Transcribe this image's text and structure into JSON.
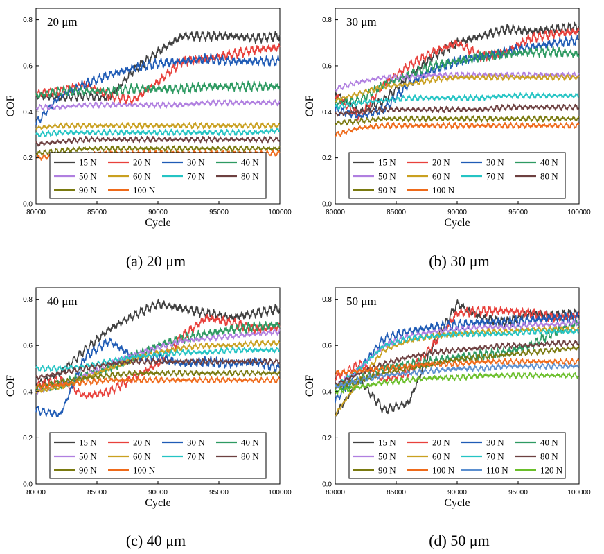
{
  "chart_data": [
    {
      "type": "line",
      "caption": "(a) 20 μm",
      "tag": "20 μm",
      "xlabel": "Cycle",
      "ylabel": "COF",
      "xlim": [
        80000,
        100000
      ],
      "ylim": [
        0,
        0.85
      ],
      "xticks": [
        "80000",
        "85000",
        "90000",
        "95000",
        "100000"
      ],
      "yticks": [
        "0.0",
        "0.2",
        "0.4",
        "0.6",
        "0.8"
      ],
      "legend": "bottom",
      "x": [
        80000,
        82000,
        84000,
        86000,
        88000,
        90000,
        92000,
        94000,
        96000,
        98000,
        100000
      ],
      "series": [
        {
          "name": "15 N",
          "color": "#404040",
          "values": [
            0.47,
            0.46,
            0.47,
            0.46,
            0.58,
            0.66,
            0.73,
            0.73,
            0.73,
            0.72,
            0.73
          ]
        },
        {
          "name": "20 N",
          "color": "#e8413c",
          "values": [
            0.48,
            0.49,
            0.52,
            0.47,
            0.45,
            0.53,
            0.62,
            0.63,
            0.65,
            0.67,
            0.68
          ]
        },
        {
          "name": "30 N",
          "color": "#1f5bb5",
          "values": [
            0.35,
            0.47,
            0.52,
            0.56,
            0.59,
            0.61,
            0.62,
            0.63,
            0.62,
            0.62,
            0.62
          ]
        },
        {
          "name": "40 N",
          "color": "#2e9a62",
          "values": [
            0.47,
            0.49,
            0.49,
            0.49,
            0.5,
            0.5,
            0.5,
            0.51,
            0.51,
            0.51,
            0.51
          ]
        },
        {
          "name": "50 N",
          "color": "#b07fe0",
          "values": [
            0.42,
            0.42,
            0.43,
            0.43,
            0.43,
            0.43,
            0.43,
            0.44,
            0.44,
            0.44,
            0.44
          ]
        },
        {
          "name": "60 N",
          "color": "#c9a020",
          "values": [
            0.33,
            0.34,
            0.34,
            0.34,
            0.34,
            0.34,
            0.34,
            0.34,
            0.34,
            0.34,
            0.34
          ]
        },
        {
          "name": "70 N",
          "color": "#24c4c4",
          "values": [
            0.3,
            0.31,
            0.31,
            0.31,
            0.31,
            0.31,
            0.31,
            0.31,
            0.31,
            0.31,
            0.32
          ]
        },
        {
          "name": "80 N",
          "color": "#6d4040",
          "values": [
            0.26,
            0.27,
            0.28,
            0.28,
            0.28,
            0.28,
            0.28,
            0.28,
            0.28,
            0.28,
            0.28
          ]
        },
        {
          "name": "90 N",
          "color": "#7a7a10",
          "values": [
            0.22,
            0.23,
            0.24,
            0.24,
            0.24,
            0.24,
            0.24,
            0.24,
            0.24,
            0.24,
            0.24
          ]
        },
        {
          "name": "100 N",
          "color": "#ef6a1a",
          "values": [
            0.2,
            0.21,
            0.21,
            0.22,
            0.22,
            0.22,
            0.22,
            0.22,
            0.22,
            0.22,
            0.22
          ]
        }
      ]
    },
    {
      "type": "line",
      "caption": "(b) 30 μm",
      "tag": "30 μm",
      "xlabel": "Cycle",
      "ylabel": "COF",
      "xlim": [
        80000,
        100000
      ],
      "ylim": [
        0,
        0.85
      ],
      "xticks": [
        "80000",
        "85000",
        "90000",
        "95000",
        "100000"
      ],
      "yticks": [
        "0.0",
        "0.2",
        "0.4",
        "0.6",
        "0.8"
      ],
      "legend": "bottom",
      "x": [
        80000,
        82000,
        84000,
        86000,
        88000,
        90000,
        92000,
        94000,
        96000,
        98000,
        100000
      ],
      "series": [
        {
          "name": "15 N",
          "color": "#404040",
          "values": [
            0.48,
            0.4,
            0.45,
            0.55,
            0.64,
            0.7,
            0.73,
            0.76,
            0.75,
            0.76,
            0.77
          ]
        },
        {
          "name": "20 N",
          "color": "#e8413c",
          "values": [
            0.47,
            0.38,
            0.52,
            0.6,
            0.66,
            0.7,
            0.64,
            0.66,
            0.72,
            0.74,
            0.75
          ]
        },
        {
          "name": "30 N",
          "color": "#1f5bb5",
          "values": [
            0.41,
            0.38,
            0.41,
            0.52,
            0.58,
            0.62,
            0.64,
            0.66,
            0.68,
            0.7,
            0.71
          ]
        },
        {
          "name": "40 N",
          "color": "#2e9a62",
          "values": [
            0.44,
            0.45,
            0.52,
            0.56,
            0.6,
            0.62,
            0.64,
            0.65,
            0.66,
            0.66,
            0.65
          ]
        },
        {
          "name": "50 N",
          "color": "#b07fe0",
          "values": [
            0.5,
            0.53,
            0.55,
            0.55,
            0.56,
            0.56,
            0.56,
            0.56,
            0.56,
            0.56,
            0.56
          ]
        },
        {
          "name": "60 N",
          "color": "#c9a020",
          "values": [
            0.45,
            0.48,
            0.51,
            0.52,
            0.54,
            0.55,
            0.55,
            0.55,
            0.55,
            0.55,
            0.55
          ]
        },
        {
          "name": "70 N",
          "color": "#24c4c4",
          "values": [
            0.42,
            0.44,
            0.45,
            0.46,
            0.46,
            0.46,
            0.46,
            0.47,
            0.47,
            0.47,
            0.47
          ]
        },
        {
          "name": "80 N",
          "color": "#6d4040",
          "values": [
            0.39,
            0.4,
            0.41,
            0.41,
            0.41,
            0.41,
            0.41,
            0.42,
            0.42,
            0.42,
            0.42
          ]
        },
        {
          "name": "90 N",
          "color": "#7a7a10",
          "values": [
            0.35,
            0.36,
            0.37,
            0.37,
            0.37,
            0.37,
            0.37,
            0.37,
            0.37,
            0.37,
            0.37
          ]
        },
        {
          "name": "100 N",
          "color": "#ef6a1a",
          "values": [
            0.3,
            0.33,
            0.34,
            0.34,
            0.34,
            0.34,
            0.34,
            0.34,
            0.34,
            0.34,
            0.34
          ]
        }
      ]
    },
    {
      "type": "line",
      "caption": "(c) 40 μm",
      "tag": "40 μm",
      "xlabel": "Cycle",
      "ylabel": "COF",
      "xlim": [
        80000,
        100000
      ],
      "ylim": [
        0,
        0.85
      ],
      "xticks": [
        "80000",
        "85000",
        "90000",
        "95000",
        "100000"
      ],
      "yticks": [
        "0.0",
        "0.2",
        "0.4",
        "0.6",
        "0.8"
      ],
      "legend": "bottom",
      "x": [
        80000,
        82000,
        84000,
        86000,
        88000,
        90000,
        92000,
        94000,
        96000,
        98000,
        100000
      ],
      "series": [
        {
          "name": "15 N",
          "color": "#404040",
          "values": [
            0.43,
            0.48,
            0.58,
            0.67,
            0.73,
            0.78,
            0.76,
            0.74,
            0.72,
            0.74,
            0.76
          ]
        },
        {
          "name": "20 N",
          "color": "#e8413c",
          "values": [
            0.43,
            0.45,
            0.38,
            0.4,
            0.46,
            0.52,
            0.64,
            0.72,
            0.7,
            0.67,
            0.68
          ]
        },
        {
          "name": "30 N",
          "color": "#1f5bb5",
          "values": [
            0.32,
            0.3,
            0.55,
            0.62,
            0.55,
            0.55,
            0.52,
            0.53,
            0.52,
            0.53,
            0.5
          ]
        },
        {
          "name": "40 N",
          "color": "#2e9a62",
          "values": [
            0.41,
            0.43,
            0.47,
            0.5,
            0.55,
            0.6,
            0.63,
            0.65,
            0.67,
            0.68,
            0.69
          ]
        },
        {
          "name": "50 N",
          "color": "#b07fe0",
          "values": [
            0.4,
            0.43,
            0.47,
            0.52,
            0.56,
            0.59,
            0.62,
            0.63,
            0.64,
            0.65,
            0.66
          ]
        },
        {
          "name": "60 N",
          "color": "#c9a020",
          "values": [
            0.4,
            0.42,
            0.46,
            0.5,
            0.54,
            0.57,
            0.59,
            0.6,
            0.6,
            0.61,
            0.61
          ]
        },
        {
          "name": "70 N",
          "color": "#24c4c4",
          "values": [
            0.5,
            0.5,
            0.51,
            0.53,
            0.55,
            0.56,
            0.57,
            0.57,
            0.58,
            0.58,
            0.58
          ]
        },
        {
          "name": "80 N",
          "color": "#6d4040",
          "values": [
            0.46,
            0.48,
            0.5,
            0.52,
            0.53,
            0.53,
            0.53,
            0.53,
            0.53,
            0.53,
            0.53
          ]
        },
        {
          "name": "90 N",
          "color": "#7a7a10",
          "values": [
            0.42,
            0.44,
            0.46,
            0.47,
            0.48,
            0.48,
            0.48,
            0.48,
            0.48,
            0.48,
            0.48
          ]
        },
        {
          "name": "100 N",
          "color": "#ef6a1a",
          "values": [
            0.42,
            0.43,
            0.44,
            0.45,
            0.45,
            0.45,
            0.45,
            0.45,
            0.45,
            0.45,
            0.45
          ]
        }
      ]
    },
    {
      "type": "line",
      "caption": "(d) 50 μm",
      "tag": "50 μm",
      "xlabel": "Cycle",
      "ylabel": "COF",
      "xlim": [
        80000,
        100000
      ],
      "ylim": [
        0,
        0.85
      ],
      "xticks": [
        "80000",
        "85000",
        "90000",
        "95000",
        "100000"
      ],
      "yticks": [
        "0.0",
        "0.2",
        "0.4",
        "0.6",
        "0.8"
      ],
      "legend": "bottom",
      "x": [
        80000,
        82000,
        84000,
        86000,
        88000,
        90000,
        92000,
        94000,
        96000,
        98000,
        100000
      ],
      "series": [
        {
          "name": "15 N",
          "color": "#404040",
          "values": [
            0.3,
            0.45,
            0.32,
            0.35,
            0.6,
            0.78,
            0.72,
            0.7,
            0.74,
            0.73,
            0.74
          ]
        },
        {
          "name": "20 N",
          "color": "#e8413c",
          "values": [
            0.46,
            0.52,
            0.45,
            0.48,
            0.6,
            0.74,
            0.75,
            0.75,
            0.74,
            0.72,
            0.73
          ]
        },
        {
          "name": "30 N",
          "color": "#1f5bb5",
          "values": [
            0.36,
            0.5,
            0.63,
            0.66,
            0.68,
            0.69,
            0.7,
            0.7,
            0.71,
            0.72,
            0.72
          ]
        },
        {
          "name": "40 N",
          "color": "#2e9a62",
          "values": [
            0.4,
            0.45,
            0.5,
            0.52,
            0.53,
            0.55,
            0.56,
            0.57,
            0.6,
            0.66,
            0.7
          ]
        },
        {
          "name": "50 N",
          "color": "#b07fe0",
          "values": [
            0.42,
            0.5,
            0.6,
            0.64,
            0.66,
            0.67,
            0.68,
            0.68,
            0.69,
            0.69,
            0.7
          ]
        },
        {
          "name": "60 N",
          "color": "#c9a020",
          "values": [
            0.3,
            0.45,
            0.58,
            0.62,
            0.64,
            0.65,
            0.66,
            0.66,
            0.67,
            0.67,
            0.67
          ]
        },
        {
          "name": "70 N",
          "color": "#24c4c4",
          "values": [
            0.42,
            0.5,
            0.6,
            0.63,
            0.64,
            0.65,
            0.65,
            0.65,
            0.66,
            0.66,
            0.66
          ]
        },
        {
          "name": "80 N",
          "color": "#6d4040",
          "values": [
            0.43,
            0.48,
            0.52,
            0.55,
            0.57,
            0.58,
            0.59,
            0.6,
            0.6,
            0.61,
            0.61
          ]
        },
        {
          "name": "90 N",
          "color": "#7a7a10",
          "values": [
            0.42,
            0.45,
            0.48,
            0.5,
            0.52,
            0.54,
            0.55,
            0.56,
            0.57,
            0.58,
            0.59
          ]
        },
        {
          "name": "100 N",
          "color": "#ef6a1a",
          "values": [
            0.48,
            0.49,
            0.5,
            0.51,
            0.52,
            0.52,
            0.53,
            0.53,
            0.53,
            0.53,
            0.53
          ]
        },
        {
          "name": "110 N",
          "color": "#5b8fd0",
          "values": [
            0.42,
            0.45,
            0.47,
            0.48,
            0.49,
            0.5,
            0.5,
            0.51,
            0.51,
            0.51,
            0.51
          ]
        },
        {
          "name": "120 N",
          "color": "#6abf2a",
          "values": [
            0.4,
            0.42,
            0.44,
            0.45,
            0.46,
            0.46,
            0.47,
            0.47,
            0.47,
            0.47,
            0.47
          ]
        }
      ]
    }
  ]
}
